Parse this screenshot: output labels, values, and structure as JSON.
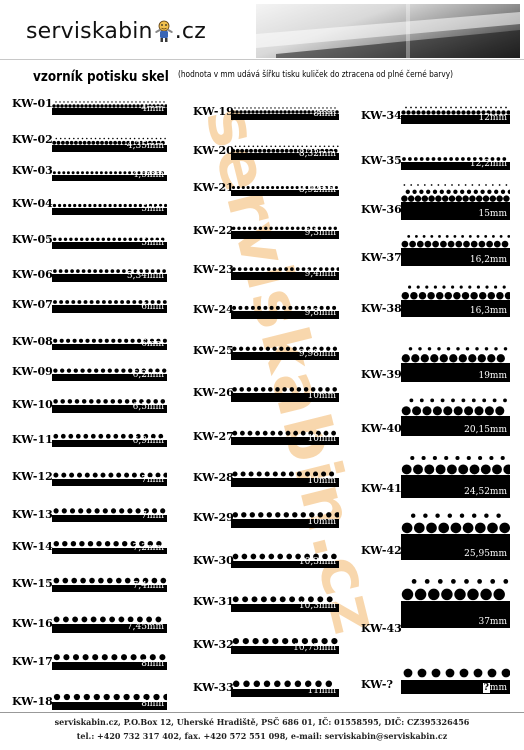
{
  "brand": {
    "part1": "serviskabin",
    "part2": ".cz"
  },
  "title": "vzorník potisku skel",
  "subtitle": "(hodnota v mm udává šířku tisku kuliček do ztracena od plné černé barvy)",
  "watermark": "serviskabin.cz",
  "columns": [
    [
      {
        "code": "KW-01",
        "mm": "4mm"
      },
      {
        "code": "KW-02",
        "mm": "4,35mm"
      },
      {
        "code": "KW-03",
        "mm": "4,5mm"
      },
      {
        "code": "KW-04",
        "mm": "5mm"
      },
      {
        "code": "KW-05",
        "mm": "5mm"
      },
      {
        "code": "KW-06",
        "mm": "5,34mm"
      },
      {
        "code": "KW-07",
        "mm": "6mm"
      },
      {
        "code": "KW-08",
        "mm": "6mm"
      },
      {
        "code": "KW-09",
        "mm": "6,2mm"
      },
      {
        "code": "KW-10",
        "mm": "6,5mm"
      },
      {
        "code": "KW-11",
        "mm": "6,9mm"
      },
      {
        "code": "KW-12",
        "mm": "7mm"
      },
      {
        "code": "KW-13",
        "mm": "7mm"
      },
      {
        "code": "KW-14",
        "mm": "7,2mm"
      },
      {
        "code": "KW-15",
        "mm": "7,4mm"
      },
      {
        "code": "KW-16",
        "mm": "7,45mm"
      },
      {
        "code": "KW-17",
        "mm": "8mm"
      },
      {
        "code": "KW-18",
        "mm": "8mm"
      }
    ],
    [
      {
        "code": "KW-19",
        "mm": "8mm"
      },
      {
        "code": "KW-20",
        "mm": "8,32mm"
      },
      {
        "code": "KW-21",
        "mm": "8,92mm"
      },
      {
        "code": "KW-22",
        "mm": "9,3mm"
      },
      {
        "code": "KW-23",
        "mm": "9,4mm"
      },
      {
        "code": "KW-24",
        "mm": "9,8mm"
      },
      {
        "code": "KW-25",
        "mm": "9,98mm"
      },
      {
        "code": "KW-26",
        "mm": "10mm"
      },
      {
        "code": "KW-27",
        "mm": "10mm"
      },
      {
        "code": "KW-28",
        "mm": "10mm"
      },
      {
        "code": "KW-29",
        "mm": "10mm"
      },
      {
        "code": "KW-30",
        "mm": "10,3mm"
      },
      {
        "code": "KW-31",
        "mm": "10,3mm"
      },
      {
        "code": "KW-32",
        "mm": "10,75mm"
      },
      {
        "code": "KW-33",
        "mm": "11mm"
      }
    ],
    [
      {
        "code": "KW-34",
        "mm": "12mm"
      },
      {
        "code": "KW-35",
        "mm": "12,2mm"
      },
      {
        "code": "KW-36",
        "mm": "15mm"
      },
      {
        "code": "KW-37",
        "mm": "16,2mm"
      },
      {
        "code": "KW-38",
        "mm": "16,3mm"
      },
      {
        "code": "KW-39",
        "mm": "19mm"
      },
      {
        "code": "KW-40",
        "mm": "20,15mm"
      },
      {
        "code": "KW-41",
        "mm": "24,52mm"
      },
      {
        "code": "KW-42",
        "mm": "25,95mm"
      },
      {
        "code": "KW-43",
        "mm": "37mm"
      },
      {
        "code": "KW-?",
        "mm_value": "?",
        "mm_unit": "mm"
      }
    ]
  ],
  "footer": {
    "line1": "serviskabin.cz, P.O.Box 12, Uherské Hradiště, PSČ 686 01, IČ: 01558595, DIČ: CZ395326456",
    "line2": "tel.: +420 732 317 402, fax. +420 572 551 098, e-mail: serviskabin@serviskabin.cz"
  }
}
